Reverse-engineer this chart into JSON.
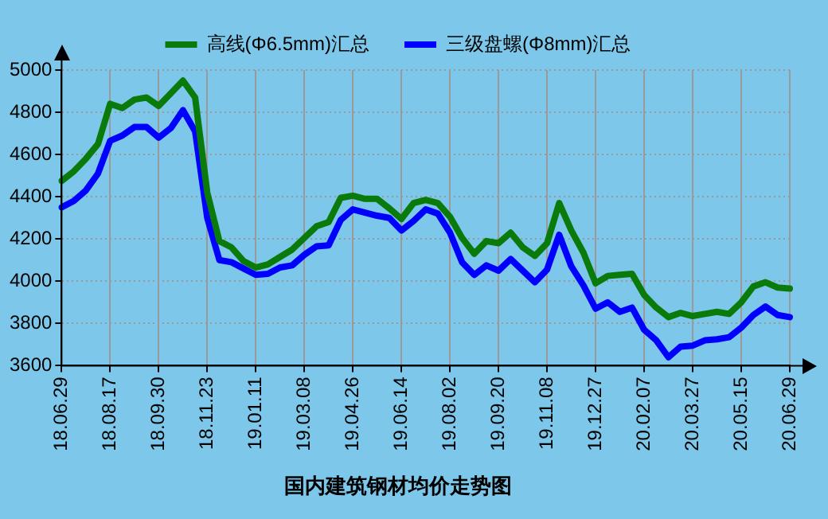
{
  "chart_data": {
    "type": "line",
    "title": "国内建筑钢材均价走势图",
    "categories": [
      "18.06.29",
      null,
      null,
      null,
      "18.08.17",
      null,
      null,
      null,
      "18.09.30",
      null,
      null,
      null,
      "18.11.23",
      null,
      null,
      null,
      "19.01.11",
      null,
      null,
      null,
      "19.03.08",
      null,
      null,
      null,
      "19.04.26",
      null,
      null,
      null,
      "19.06.14",
      null,
      null,
      null,
      "19.08.02",
      null,
      null,
      null,
      "19.09.20",
      null,
      null,
      null,
      "19.11.08",
      null,
      null,
      null,
      "19.12.27",
      null,
      null,
      null,
      "20.02.07",
      null,
      null,
      null,
      "20.03.27",
      null,
      null,
      null,
      "20.05.15",
      null,
      null,
      null,
      "20.06.29"
    ],
    "series": [
      {
        "name": "高线(Φ6.5mm)汇总",
        "color": "#0a7a0a",
        "values": [
          4475,
          4520,
          4580,
          4650,
          4840,
          4820,
          4860,
          4870,
          4830,
          4890,
          4950,
          4870,
          4420,
          4190,
          4160,
          4095,
          4065,
          4080,
          4115,
          4150,
          4205,
          4260,
          4280,
          4395,
          4405,
          4390,
          4390,
          4345,
          4295,
          4370,
          4385,
          4370,
          4305,
          4205,
          4130,
          4190,
          4180,
          4230,
          4160,
          4120,
          4180,
          4370,
          4240,
          4135,
          3990,
          4025,
          4030,
          4035,
          3935,
          3875,
          3830,
          3850,
          3835,
          3845,
          3855,
          3845,
          3900,
          3975,
          3995,
          3970,
          3965
        ]
      },
      {
        "name": "三级盘螺(Φ8mm)汇总",
        "color": "#0000ff",
        "values": [
          4350,
          4380,
          4430,
          4510,
          4665,
          4690,
          4730,
          4730,
          4680,
          4725,
          4810,
          4710,
          4300,
          4100,
          4090,
          4060,
          4030,
          4035,
          4065,
          4075,
          4125,
          4165,
          4170,
          4290,
          4340,
          4325,
          4310,
          4300,
          4240,
          4285,
          4340,
          4320,
          4230,
          4090,
          4030,
          4075,
          4050,
          4105,
          4050,
          3995,
          4055,
          4220,
          4070,
          3980,
          3870,
          3900,
          3855,
          3875,
          3770,
          3720,
          3640,
          3690,
          3695,
          3720,
          3725,
          3735,
          3780,
          3840,
          3880,
          3840,
          3830
        ]
      }
    ],
    "ylim": [
      3600,
      5000
    ],
    "yticks": [
      3600,
      3800,
      4000,
      4200,
      4400,
      4600,
      4800,
      5000
    ],
    "grid": true,
    "legend": "top",
    "marker": "none",
    "line_style": "solid"
  }
}
